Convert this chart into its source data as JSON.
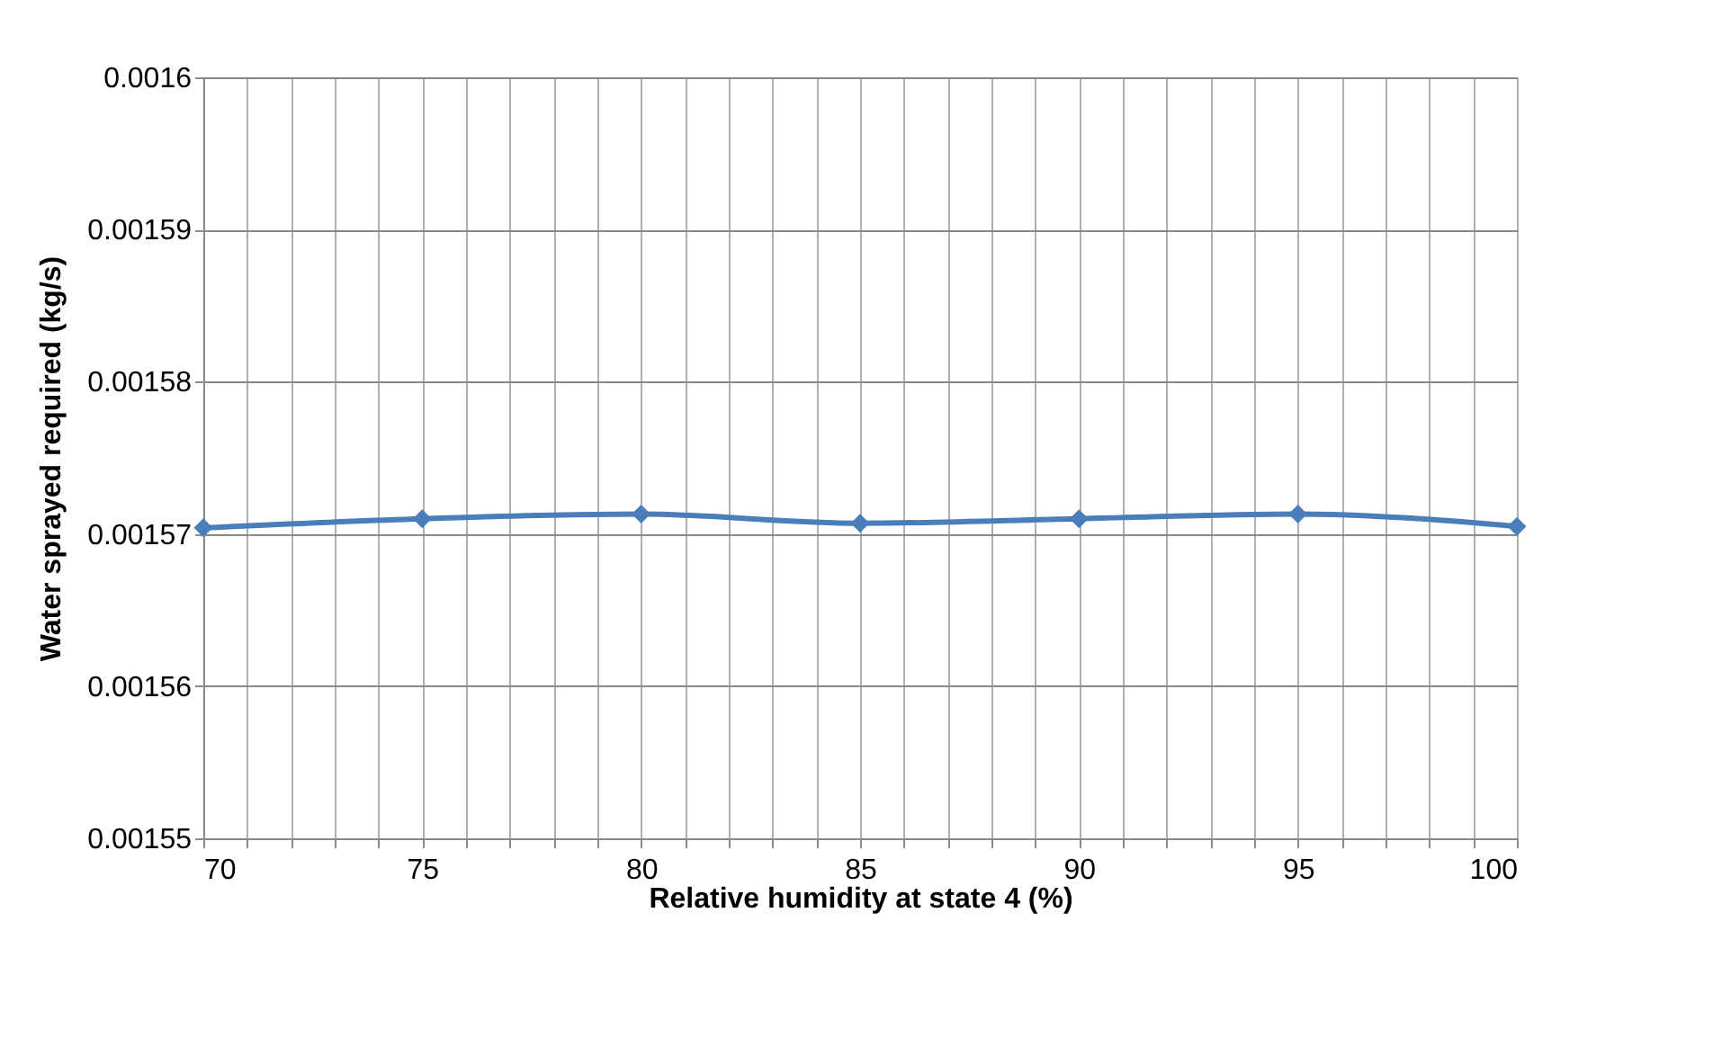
{
  "chart_data": {
    "type": "line",
    "xlabel": "Relative humidity at state 4 (%)",
    "ylabel": "Water sprayed required (kg/s)",
    "x": [
      70,
      75,
      80,
      85,
      90,
      95,
      100
    ],
    "series": [
      {
        "color": "#4a7ebb",
        "values": [
          0.0015704,
          0.001571,
          0.0015713,
          0.0015707,
          0.001571,
          0.0015713,
          0.0015705
        ]
      }
    ],
    "xlim": [
      70,
      100
    ],
    "ylim": [
      0.00155,
      0.0016
    ],
    "xticks": [
      70,
      {
        "value": 71,
        "label": null
      },
      {
        "value": 72,
        "label": null
      },
      {
        "value": 73,
        "label": null
      },
      {
        "value": 74,
        "label": null
      },
      75,
      {
        "value": 76,
        "label": null
      },
      {
        "value": 77,
        "label": null
      },
      {
        "value": 78,
        "label": null
      },
      {
        "value": 79,
        "label": null
      },
      80,
      {
        "value": 81,
        "label": null
      },
      {
        "value": 82,
        "label": null
      },
      {
        "value": 83,
        "label": null
      },
      {
        "value": 84,
        "label": null
      },
      85,
      {
        "value": 86,
        "label": null
      },
      {
        "value": 87,
        "label": null
      },
      {
        "value": 88,
        "label": null
      },
      {
        "value": 89,
        "label": null
      },
      90,
      {
        "value": 91,
        "label": null
      },
      {
        "value": 92,
        "label": null
      },
      {
        "value": 93,
        "label": null
      },
      {
        "value": 94,
        "label": null
      },
      95,
      {
        "value": 96,
        "label": null
      },
      {
        "value": 97,
        "label": null
      },
      {
        "value": 98,
        "label": null
      },
      {
        "value": 99,
        "label": null
      },
      100
    ],
    "yticks": [
      0.00155,
      0.00156,
      0.00157,
      0.00158,
      0.00159,
      0.0016
    ],
    "grid": true,
    "marker": "diamond",
    "line_style": "solid"
  }
}
